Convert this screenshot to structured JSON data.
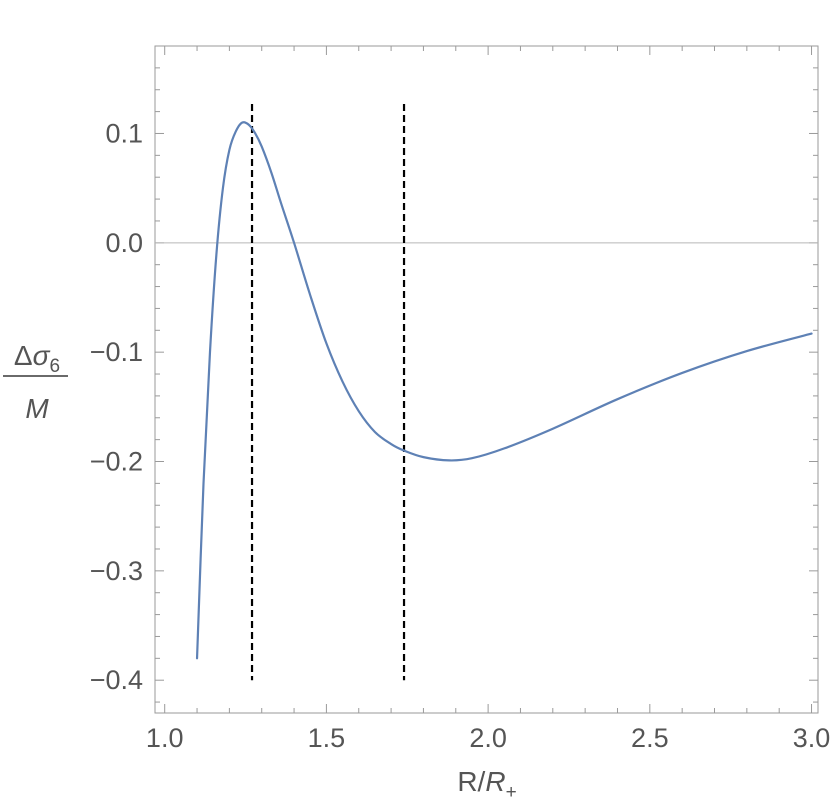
{
  "chart_data": {
    "type": "line",
    "xlabel": "R/R+",
    "xlabel_parts": {
      "num": "R/",
      "var": "R",
      "sub": "+"
    },
    "ylabel_parts": {
      "delta": "Δ",
      "var": "σ",
      "sub": "6",
      "den": "M"
    },
    "xlim": [
      0.97,
      3.02
    ],
    "ylim": [
      -0.43,
      0.18
    ],
    "x_ticks": [
      1.0,
      1.5,
      2.0,
      2.5,
      3.0
    ],
    "x_tick_labels": [
      "1.0",
      "1.5",
      "2.0",
      "2.5",
      "3.0"
    ],
    "y_ticks": [
      0.1,
      0.0,
      -0.1,
      -0.2,
      -0.3,
      -0.4
    ],
    "y_tick_labels": [
      "0.1",
      "0.0",
      "−0.1",
      "−0.2",
      "−0.3",
      "−0.4"
    ],
    "zero_line": true,
    "grid": false,
    "series": [
      {
        "color": "#5e81b5",
        "x": [
          1.1,
          1.12,
          1.14,
          1.16,
          1.18,
          1.2,
          1.22,
          1.24,
          1.26,
          1.28,
          1.3,
          1.33,
          1.36,
          1.4,
          1.45,
          1.5,
          1.55,
          1.6,
          1.65,
          1.7,
          1.74,
          1.8,
          1.88,
          1.95,
          2.05,
          2.2,
          2.4,
          2.6,
          2.8,
          3.0
        ],
        "y": [
          -0.38,
          -0.22,
          -0.1,
          -0.01,
          0.05,
          0.085,
          0.102,
          0.11,
          0.108,
          0.1,
          0.088,
          0.064,
          0.036,
          0.0,
          -0.048,
          -0.092,
          -0.127,
          -0.154,
          -0.173,
          -0.184,
          -0.19,
          -0.196,
          -0.199,
          -0.197,
          -0.188,
          -0.17,
          -0.143,
          -0.119,
          -0.099,
          -0.083
        ]
      }
    ],
    "vlines": [
      {
        "x": 1.27,
        "ymin": -0.4,
        "ymax": 0.127,
        "style": "dashed",
        "color": "#000000"
      },
      {
        "x": 1.74,
        "ymin": -0.4,
        "ymax": 0.127,
        "style": "dashed",
        "color": "#000000"
      }
    ]
  }
}
